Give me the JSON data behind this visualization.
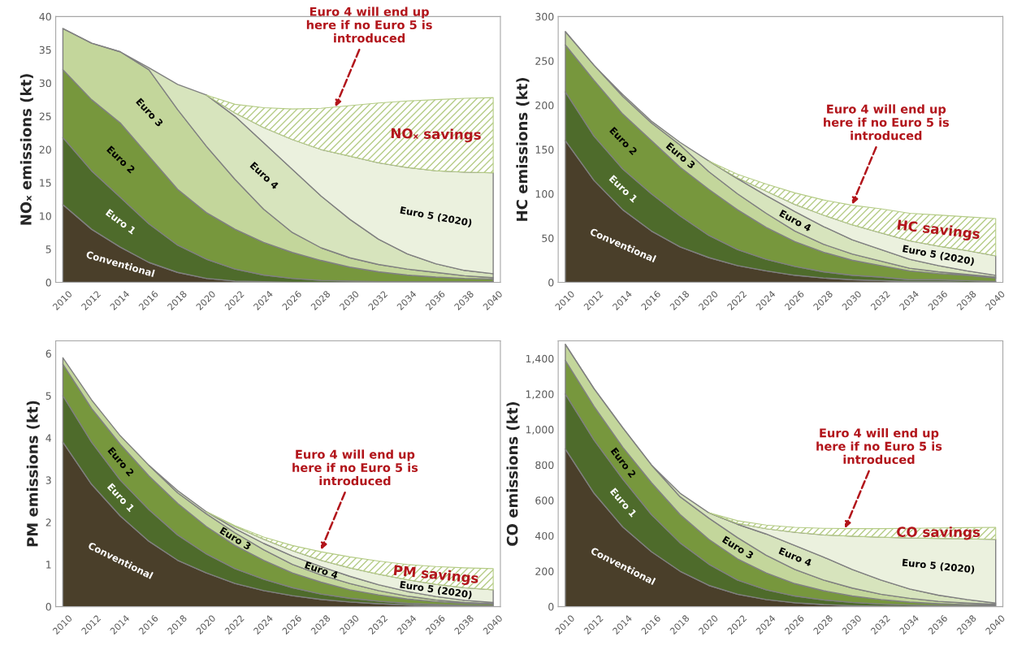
{
  "chart_data": [
    {
      "type": "area",
      "stacked": true,
      "ylabel": "NOₓ emissions (kt)",
      "x": [
        2010,
        2012,
        2014,
        2016,
        2018,
        2020,
        2022,
        2024,
        2026,
        2028,
        2030,
        2032,
        2034,
        2036,
        2038,
        2040
      ],
      "xlim": [
        2009.5,
        2040.5
      ],
      "xticks": [
        2010,
        2012,
        2014,
        2016,
        2018,
        2020,
        2022,
        2024,
        2026,
        2028,
        2030,
        2032,
        2034,
        2036,
        2038,
        2040
      ],
      "ylim": [
        0,
        40
      ],
      "yticks": [
        0,
        5,
        10,
        15,
        20,
        25,
        30,
        35,
        40
      ],
      "legend": false,
      "grid": false,
      "series": [
        {
          "name": "Conventional",
          "color": "#4a3f2a",
          "values": [
            11.7,
            8.0,
            5.3,
            3.0,
            1.5,
            0.6,
            0.2,
            0.1,
            0,
            0,
            0,
            0,
            0,
            0,
            0,
            0
          ]
        },
        {
          "name": "Euro 1",
          "color": "#4e6b2b",
          "values": [
            10.1,
            8.8,
            7.5,
            5.8,
            4.1,
            2.9,
            1.8,
            1.0,
            0.6,
            0.3,
            0.2,
            0.1,
            0.1,
            0.1,
            0.1,
            0.1
          ]
        },
        {
          "name": "Euro 2",
          "color": "#77973d",
          "values": [
            10.2,
            10.7,
            11.2,
            10.2,
            8.4,
            7.0,
            6.0,
            4.9,
            3.9,
            3.0,
            2.1,
            1.5,
            1.0,
            0.7,
            0.5,
            0.4
          ]
        },
        {
          "name": "Euro 3",
          "color": "#c3d69b",
          "values": [
            6.2,
            8.5,
            10.7,
            13.0,
            12.0,
            10.0,
            7.5,
            5.0,
            3.0,
            1.9,
            1.4,
            1.1,
            0.9,
            0.7,
            0.4,
            0.2
          ]
        },
        {
          "name": "Euro 4",
          "color": "#d7e4bd",
          "values": [
            0,
            0,
            0,
            0.3,
            3.8,
            7.7,
            9.5,
            10.0,
            9.5,
            7.8,
            5.8,
            3.8,
            2.3,
            1.3,
            0.8,
            0.6
          ]
        },
        {
          "name": "Euro 5 (2020)",
          "color": "#ebf1de",
          "values": [
            null,
            null,
            null,
            null,
            null,
            0,
            0.5,
            2.3,
            4.5,
            7.0,
            9.5,
            11.5,
            13.0,
            14.0,
            14.8,
            15.2
          ]
        },
        {
          "name": "NOₓ savings",
          "color": "#b5cc86",
          "values": [
            null,
            null,
            null,
            null,
            null,
            0,
            1.3,
            3.0,
            4.6,
            6.2,
            7.6,
            9.0,
            10.0,
            10.7,
            11.1,
            11.3
          ]
        }
      ],
      "annotations": [
        {
          "text": "Euro 4 will end up\nhere if no Euro 5 is\nintroduced",
          "x": 2029,
          "y": 26.4
        }
      ]
    },
    {
      "type": "area",
      "stacked": true,
      "ylabel": "HC emissions (kt)",
      "x": [
        2010,
        2012,
        2014,
        2016,
        2018,
        2020,
        2022,
        2024,
        2026,
        2028,
        2030,
        2032,
        2034,
        2036,
        2038,
        2040
      ],
      "xlim": [
        2009.5,
        2040.5
      ],
      "xticks": [
        2010,
        2012,
        2014,
        2016,
        2018,
        2020,
        2022,
        2024,
        2026,
        2028,
        2030,
        2032,
        2034,
        2036,
        2038,
        2040
      ],
      "ylim": [
        0,
        300
      ],
      "yticks": [
        0,
        50,
        100,
        150,
        200,
        250,
        300
      ],
      "legend": false,
      "grid": false,
      "series": [
        {
          "name": "Conventional",
          "color": "#4a3f2a",
          "values": [
            160,
            115,
            82,
            58,
            40,
            28,
            19,
            13,
            8,
            5,
            3,
            2,
            1,
            1,
            0,
            0
          ]
        },
        {
          "name": "Euro 1",
          "color": "#4e6b2b",
          "values": [
            55,
            50,
            46,
            42,
            35,
            25,
            18,
            13,
            10,
            7,
            5,
            4,
            2,
            2,
            2,
            1
          ]
        },
        {
          "name": "Euro 2",
          "color": "#77973d",
          "values": [
            53,
            63,
            62,
            60,
            55,
            52,
            45,
            36,
            28,
            22,
            17,
            13,
            10,
            7,
            6,
            4
          ]
        },
        {
          "name": "Euro 3",
          "color": "#c3d69b",
          "values": [
            15,
            17,
            20,
            20,
            25,
            20,
            18,
            16,
            12,
            9,
            7,
            5,
            3,
            2,
            1,
            1
          ]
        },
        {
          "name": "Euro 4",
          "color": "#d7e4bd",
          "values": [
            0,
            0,
            2,
            2,
            3,
            12,
            17,
            20,
            22,
            20,
            16,
            13,
            10,
            7,
            4,
            2
          ]
        },
        {
          "name": "Euro 5 (2020)",
          "color": "#ebf1de",
          "values": [
            null,
            null,
            null,
            null,
            null,
            0,
            1,
            5,
            8,
            13,
            17,
            19,
            21,
            22,
            23,
            22
          ]
        },
        {
          "name": "HC savings",
          "color": "#b5cc86",
          "values": [
            null,
            null,
            null,
            null,
            null,
            0,
            4,
            8,
            13,
            17,
            22,
            27,
            31,
            35,
            38,
            42
          ]
        }
      ],
      "annotations": [
        {
          "text": "Euro 4 will end up\nhere if no Euro 5 is\nintroduced",
          "x": 2030,
          "y": 88
        }
      ]
    },
    {
      "type": "area",
      "stacked": true,
      "ylabel": "PM emissions (kt)",
      "x": [
        2010,
        2012,
        2014,
        2016,
        2018,
        2020,
        2022,
        2024,
        2026,
        2028,
        2030,
        2032,
        2034,
        2036,
        2038,
        2040
      ],
      "xlim": [
        2009.5,
        2040.5
      ],
      "xticks": [
        2010,
        2012,
        2014,
        2016,
        2018,
        2020,
        2022,
        2024,
        2026,
        2028,
        2030,
        2032,
        2034,
        2036,
        2038,
        2040
      ],
      "ylim": [
        0,
        6.3
      ],
      "yticks": [
        0,
        1,
        2,
        3,
        4,
        5,
        6
      ],
      "legend": false,
      "grid": false,
      "series": [
        {
          "name": "Conventional",
          "color": "#4a3f2a",
          "values": [
            3.9,
            2.9,
            2.15,
            1.55,
            1.1,
            0.8,
            0.55,
            0.38,
            0.26,
            0.17,
            0.11,
            0.07,
            0.04,
            0.02,
            0.01,
            0
          ]
        },
        {
          "name": "Euro 1",
          "color": "#4e6b2b",
          "values": [
            1.1,
            1.0,
            0.85,
            0.75,
            0.6,
            0.45,
            0.35,
            0.27,
            0.19,
            0.13,
            0.09,
            0.06,
            0.04,
            0.03,
            0.02,
            0.02
          ]
        },
        {
          "name": "Euro 2",
          "color": "#77973d",
          "values": [
            0.75,
            0.8,
            0.85,
            0.8,
            0.75,
            0.65,
            0.55,
            0.45,
            0.35,
            0.28,
            0.2,
            0.15,
            0.1,
            0.07,
            0.05,
            0.04
          ]
        },
        {
          "name": "Euro 3",
          "color": "#c3d69b",
          "values": [
            0.15,
            0.2,
            0.2,
            0.25,
            0.25,
            0.3,
            0.3,
            0.25,
            0.2,
            0.17,
            0.15,
            0.1,
            0.07,
            0.04,
            0.02,
            0.01
          ]
        },
        {
          "name": "Euro 4",
          "color": "#d7e4bd",
          "values": [
            null,
            null,
            null,
            0,
            0.05,
            0.05,
            0.1,
            0.15,
            0.2,
            0.2,
            0.17,
            0.14,
            0.11,
            0.08,
            0.05,
            0.03
          ]
        },
        {
          "name": "Euro 5 (2020)",
          "color": "#ebf1de",
          "values": [
            null,
            null,
            null,
            null,
            null,
            0,
            0.05,
            0.1,
            0.13,
            0.15,
            0.2,
            0.25,
            0.28,
            0.29,
            0.3,
            0.3
          ]
        },
        {
          "name": "PM savings",
          "color": "#b5cc86",
          "values": [
            null,
            null,
            null,
            null,
            null,
            0,
            0.02,
            0.05,
            0.12,
            0.2,
            0.26,
            0.31,
            0.36,
            0.42,
            0.47,
            0.5
          ]
        }
      ],
      "annotations": [
        {
          "text": "Euro 4 will end up\nhere if no Euro 5 is\nintroduced",
          "x": 2028,
          "y": 1.35
        }
      ]
    },
    {
      "type": "area",
      "stacked": true,
      "ylabel": "CO emissions (kt)",
      "x": [
        2010,
        2012,
        2014,
        2016,
        2018,
        2020,
        2022,
        2024,
        2026,
        2028,
        2030,
        2032,
        2034,
        2036,
        2038,
        2040
      ],
      "xlim": [
        2009.5,
        2040.5
      ],
      "xticks": [
        2010,
        2012,
        2014,
        2016,
        2018,
        2020,
        2022,
        2024,
        2026,
        2028,
        2030,
        2032,
        2034,
        2036,
        2038,
        2040
      ],
      "ylim": [
        0,
        1500
      ],
      "yticks": [
        0,
        200,
        400,
        600,
        800,
        {
          "value": 1000,
          "label": "1,000"
        },
        {
          "value": 1200,
          "label": "1,200"
        },
        {
          "value": 1400,
          "label": "1,400"
        }
      ],
      "legend": false,
      "grid": false,
      "series": [
        {
          "name": "Conventional",
          "color": "#4a3f2a",
          "values": [
            890,
            640,
            450,
            310,
            200,
            120,
            70,
            40,
            22,
            12,
            6,
            3,
            1,
            0,
            0,
            0
          ]
        },
        {
          "name": "Euro 1",
          "color": "#4e6b2b",
          "values": [
            310,
            300,
            270,
            210,
            160,
            120,
            80,
            55,
            38,
            26,
            18,
            12,
            8,
            5,
            3,
            2
          ]
        },
        {
          "name": "Euro 2",
          "color": "#77973d",
          "values": [
            190,
            190,
            180,
            180,
            160,
            140,
            120,
            95,
            70,
            52,
            36,
            25,
            17,
            12,
            8,
            6
          ]
        },
        {
          "name": "Euro 3",
          "color": "#c3d69b",
          "values": [
            90,
            100,
            110,
            100,
            100,
            120,
            120,
            100,
            80,
            60,
            45,
            30,
            21,
            13,
            9,
            5
          ]
        },
        {
          "name": "Euro 4",
          "color": "#d7e4bd",
          "values": [
            0,
            0,
            0,
            0,
            20,
            30,
            75,
            120,
            135,
            130,
            105,
            80,
            53,
            35,
            20,
            7
          ]
        },
        {
          "name": "Euro 5 (2020)",
          "color": "#ebf1de",
          "values": [
            null,
            null,
            null,
            null,
            null,
            0,
            5,
            30,
            75,
            125,
            188,
            242,
            288,
            320,
            343,
            360
          ]
        },
        {
          "name": "CO savings",
          "color": "#b5cc86",
          "values": [
            null,
            null,
            null,
            null,
            null,
            0,
            15,
            20,
            28,
            37,
            42,
            48,
            54,
            59,
            63,
            68
          ]
        }
      ],
      "annotations": [
        {
          "text": "Euro 4 will end up\nhere if no Euro 5 is\nintroduced",
          "x": 2029.5,
          "y": 442
        }
      ]
    }
  ]
}
